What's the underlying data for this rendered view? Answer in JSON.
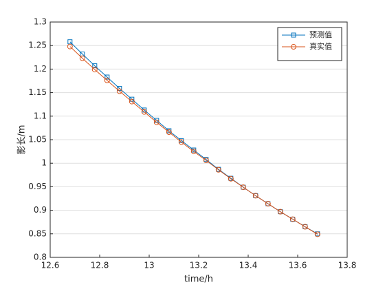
{
  "chart_data": {
    "type": "line",
    "xlabel": "time/h",
    "ylabel": "影长/m",
    "x": [
      12.68,
      12.73,
      12.78,
      12.83,
      12.88,
      12.93,
      12.98,
      13.03,
      13.08,
      13.13,
      13.18,
      13.23,
      13.28,
      13.33,
      13.38,
      13.43,
      13.48,
      13.53,
      13.58,
      13.63,
      13.68
    ],
    "series": [
      {
        "name": "预测值",
        "color": "#0072bd",
        "marker": "square",
        "values": [
          1.258,
          1.232,
          1.207,
          1.183,
          1.159,
          1.136,
          1.113,
          1.091,
          1.069,
          1.048,
          1.028,
          1.008,
          0.987,
          0.968,
          0.949,
          0.931,
          0.914,
          0.897,
          0.881,
          0.865,
          0.85
        ]
      },
      {
        "name": "真实值",
        "color": "#d95319",
        "marker": "circle",
        "values": [
          1.248,
          1.223,
          1.199,
          1.176,
          1.153,
          1.131,
          1.109,
          1.087,
          1.066,
          1.045,
          1.025,
          1.006,
          0.986,
          0.967,
          0.949,
          0.931,
          0.914,
          0.897,
          0.881,
          0.865,
          0.849
        ]
      }
    ],
    "xlim": [
      12.6,
      13.8
    ],
    "xticks": [
      12.6,
      12.8,
      13,
      13.2,
      13.4,
      13.6,
      13.8
    ],
    "ylim": [
      0.8,
      1.3
    ],
    "yticks": [
      0.8,
      0.85,
      0.9,
      0.95,
      1,
      1.05,
      1.1,
      1.15,
      1.2,
      1.25,
      1.3
    ],
    "grid": "y",
    "legend": "northeast"
  }
}
